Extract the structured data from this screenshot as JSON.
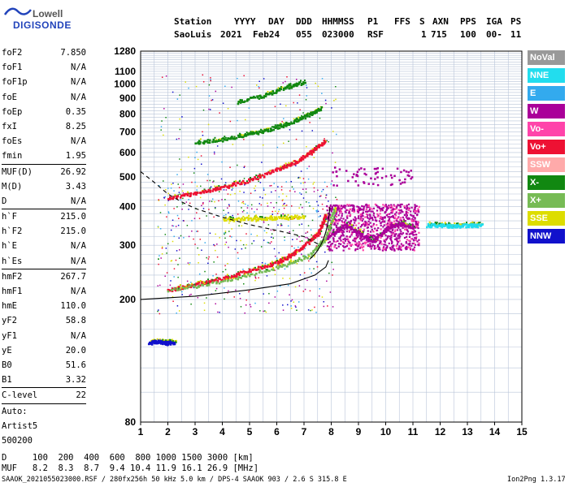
{
  "logo": {
    "top": "Lowell",
    "bottom": "DIGISONDE"
  },
  "header": {
    "row1": [
      "Station",
      "YYYY",
      "DAY",
      "DDD",
      "HHMMSS",
      "P1",
      "FFS",
      "S",
      "AXN",
      "PPS",
      "IGA",
      "PS"
    ],
    "row2": [
      "SaoLuis",
      "2021",
      "Feb24",
      "055",
      "023000",
      "RSF",
      "1",
      "715",
      "100",
      "00-",
      "11"
    ]
  },
  "params": {
    "group1": [
      {
        "name": "foF2",
        "value": "7.850"
      },
      {
        "name": "foF1",
        "value": "N/A"
      },
      {
        "name": "foF1p",
        "value": "N/A"
      },
      {
        "name": "foE",
        "value": "N/A"
      },
      {
        "name": "foEp",
        "value": "0.35"
      },
      {
        "name": "fxI",
        "value": "8.25"
      },
      {
        "name": "foEs",
        "value": "N/A"
      },
      {
        "name": "fmin",
        "value": "1.95"
      }
    ],
    "group2": [
      {
        "name": "MUF(D)",
        "value": "26.92"
      },
      {
        "name": "M(D)",
        "value": "3.43"
      },
      {
        "name": "D",
        "value": "N/A"
      }
    ],
    "group3": [
      {
        "name": "h`F",
        "value": "215.0"
      },
      {
        "name": "h`F2",
        "value": "215.0"
      },
      {
        "name": "h`E",
        "value": "N/A"
      },
      {
        "name": "h`Es",
        "value": "N/A"
      }
    ],
    "group4": [
      {
        "name": "hmF2",
        "value": "267.7"
      },
      {
        "name": "hmF1",
        "value": "N/A"
      },
      {
        "name": "hmE",
        "value": "110.0"
      },
      {
        "name": "yF2",
        "value": "58.8"
      },
      {
        "name": "yF1",
        "value": "N/A"
      },
      {
        "name": "yE",
        "value": "20.0"
      },
      {
        "name": "B0",
        "value": "51.6"
      },
      {
        "name": "B1",
        "value": "3.32"
      }
    ],
    "clevel": {
      "name": "C-level",
      "value": "22"
    },
    "auto": [
      "Auto:",
      "Artist5",
      "500200"
    ]
  },
  "legend": [
    {
      "label": "NoVal",
      "color": "#999999"
    },
    {
      "label": "NNE",
      "color": "#22ddee"
    },
    {
      "label": "E",
      "color": "#33aaee"
    },
    {
      "label": "W",
      "color": "#aa0099"
    },
    {
      "label": "Vo-",
      "color": "#ff44aa"
    },
    {
      "label": "Vo+",
      "color": "#ee1133"
    },
    {
      "label": "SSW",
      "color": "#ffaaaa"
    },
    {
      "label": "X-",
      "color": "#118811"
    },
    {
      "label": "X+",
      "color": "#77bb55"
    },
    {
      "label": "SSE",
      "color": "#dddd00"
    },
    {
      "label": "NNW",
      "color": "#1111cc"
    }
  ],
  "footer": {
    "d_row": "D     100  200  400  600  800 1000 1500 3000 [km]",
    "muf_row": "MUF   8.2  8.3  8.7  9.4 10.4 11.9 16.1 26.9 [MHz]",
    "line": "SAAOK_2021055023000.RSF / 280fx256h 50 kHz 5.0 km / DPS-4 SAAOK 903 / 2.6 S 315.8 E",
    "version": "Ion2Png 1.3.17"
  },
  "chart_data": {
    "type": "scatter",
    "xlim": [
      1,
      15
    ],
    "ylim": [
      80,
      1280
    ],
    "y_scale": "log",
    "x_ticks": [
      1,
      2,
      3,
      4,
      5,
      6,
      7,
      8,
      9,
      10,
      11,
      12,
      13,
      14,
      15
    ],
    "y_ticks": [
      80,
      200,
      300,
      400,
      500,
      600,
      700,
      800,
      900,
      1000,
      1100,
      1280
    ],
    "grid": true,
    "legend_position": "right",
    "series": [
      {
        "color_key": "Vo+",
        "x": [
          2.0,
          3.0,
          4.0,
          5.0,
          6.0,
          6.5,
          7.0,
          7.5,
          7.8
        ],
        "y": [
          215,
          225,
          235,
          250,
          265,
          280,
          300,
          330,
          380
        ]
      },
      {
        "color_key": "Vo+",
        "x": [
          2.0,
          3.0,
          4.0,
          5.0,
          6.0,
          6.8,
          7.3,
          7.8
        ],
        "y": [
          430,
          445,
          465,
          490,
          530,
          570,
          610,
          660
        ]
      },
      {
        "color_key": "X-",
        "x": [
          3.0,
          4.0,
          5.0,
          5.8,
          6.6,
          7.2,
          7.6
        ],
        "y": [
          650,
          665,
          690,
          720,
          760,
          800,
          840
        ]
      },
      {
        "color_key": "X-",
        "x": [
          4.5,
          5.5,
          6.3,
          7.0
        ],
        "y": [
          880,
          920,
          980,
          1020
        ]
      },
      {
        "color_key": "X+",
        "x": [
          2.0,
          4.0,
          6.0,
          7.2,
          7.8,
          8.1
        ],
        "y": [
          215,
          230,
          255,
          280,
          320,
          400
        ]
      },
      {
        "color_key": "W",
        "x": [
          7.8,
          8.5,
          9.0,
          9.5,
          10.0,
          10.5,
          11.0
        ],
        "y": [
          320,
          350,
          330,
          310,
          340,
          355,
          345
        ]
      },
      {
        "color_key": "NNE",
        "x": [
          11.5,
          12.0,
          12.5,
          13.0,
          13.5
        ],
        "y": [
          350,
          350,
          348,
          350,
          350
        ]
      },
      {
        "color_key": "SSE",
        "x": [
          4.0,
          5.0,
          6.0,
          7.0
        ],
        "y": [
          365,
          368,
          370,
          372
        ]
      },
      {
        "color_key": "NNW",
        "x": [
          1.3,
          1.6,
          1.9,
          2.2
        ],
        "y": [
          145,
          147,
          145,
          146
        ]
      }
    ],
    "profile_solid": {
      "x": [
        1.0,
        3.0,
        5.0,
        6.5,
        7.4,
        7.8,
        7.9
      ],
      "y": [
        200,
        205,
        215,
        225,
        240,
        255,
        268
      ]
    },
    "profile_dashed": {
      "x": [
        1.0,
        1.5,
        2.0,
        2.5,
        3.0,
        4.0,
        5.0,
        6.0,
        7.0,
        7.6
      ],
      "y": [
        520,
        480,
        440,
        415,
        395,
        370,
        350,
        335,
        320,
        300
      ]
    }
  }
}
